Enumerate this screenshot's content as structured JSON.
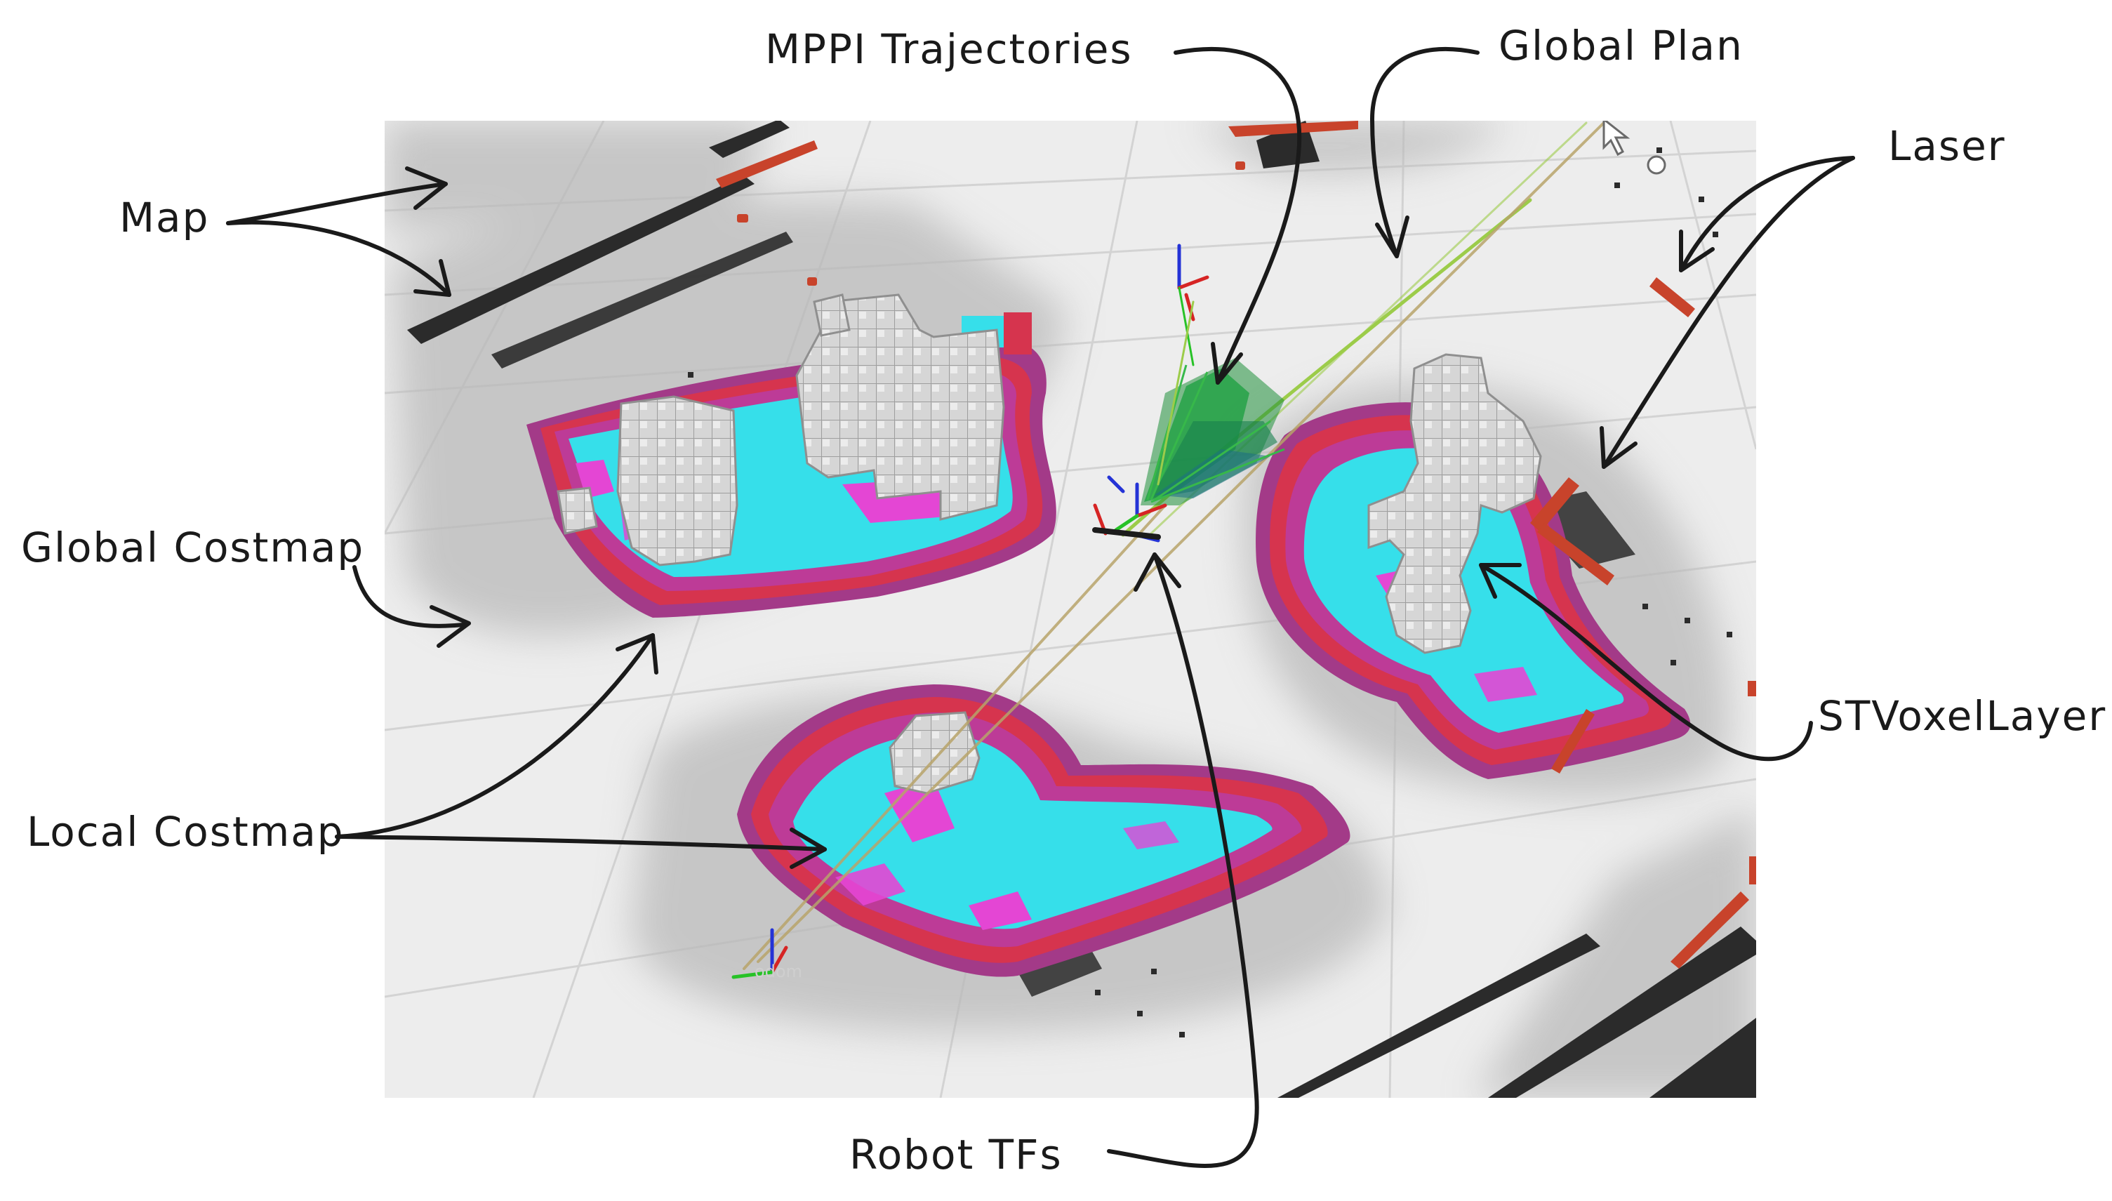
{
  "annotations": {
    "map": "Map",
    "mppi": "MPPI Trajectories",
    "global_plan": "Global Plan",
    "laser": "Laser",
    "global_costmap": "Global Costmap",
    "local_costmap": "Local Costmap",
    "stvoxel": "STVoxelLayer",
    "robot_tfs": "Robot TFs"
  },
  "scene": {
    "odom_label": "odom"
  },
  "colors": {
    "floor": "#ececec",
    "grid": "#d4d4d4",
    "inflation_shadow": "#bdbdbd",
    "costmap_cyan": "#35dfea",
    "costmap_magenta": "#e443d6",
    "costmap_red": "#d8344e",
    "costmap_purple": "#a43a8c",
    "voxel": "#d2d2d2",
    "laser": "#c8432b",
    "map_walls": "#2b2b2b",
    "mppi_green": "#1f8f3a",
    "global_plan": "#9ccc4a",
    "annotation_ink": "#1a1a1a"
  }
}
